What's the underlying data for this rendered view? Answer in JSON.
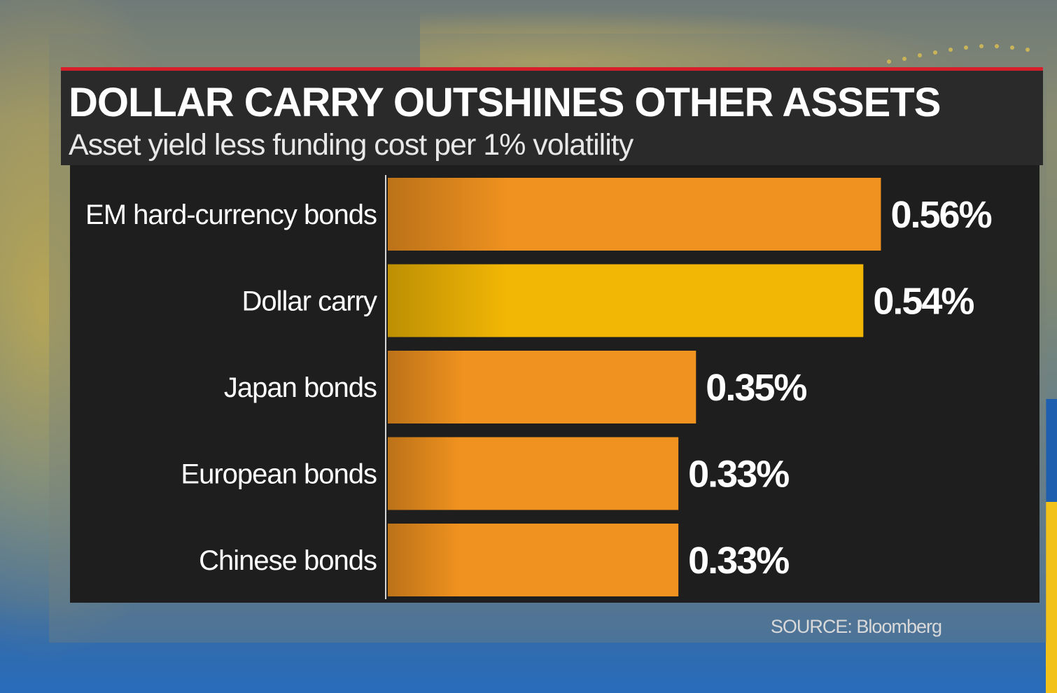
{
  "chart_data": {
    "type": "bar",
    "orientation": "horizontal",
    "title": "DOLLAR CARRY OUTSHINES OTHER ASSETS",
    "subtitle": "Asset yield less funding cost per 1% volatility",
    "categories": [
      "EM hard-currency bonds",
      "Dollar carry",
      "Japan bonds",
      "European bonds",
      "Chinese bonds"
    ],
    "values": [
      0.56,
      0.54,
      0.35,
      0.33,
      0.33
    ],
    "value_labels": [
      "0.56%",
      "0.54%",
      "0.35%",
      "0.33%",
      "0.33%"
    ],
    "unit": "%",
    "highlight_category": "Dollar carry",
    "colors": {
      "bar": "#f0921f",
      "highlight": "#f2b705",
      "background": "#1e1e1e",
      "title_bar": "#2a2a2a",
      "accent_line": "#d71e2b",
      "text": "#ffffff"
    },
    "source": "SOURCE: Bloomberg",
    "grid": false,
    "legend": "none"
  }
}
